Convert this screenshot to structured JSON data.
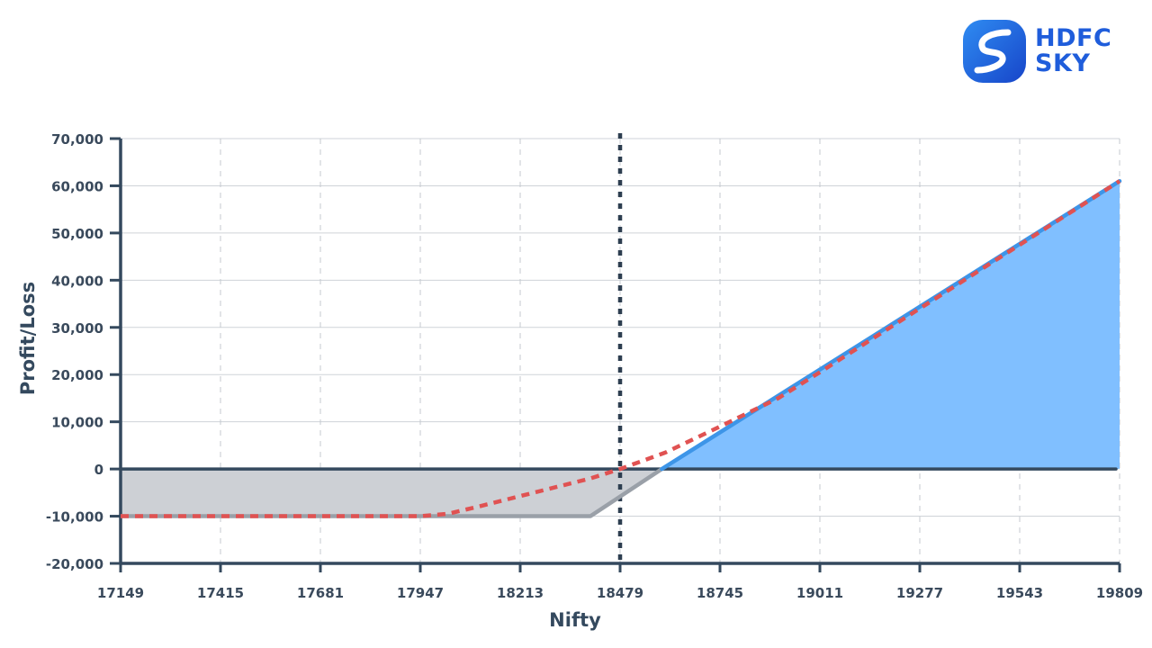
{
  "brand": {
    "line1": "HDFC",
    "line2": "SKY",
    "color": "#1f5ddb"
  },
  "chart_data": {
    "type": "area",
    "xlabel": "Nifty",
    "ylabel": "Profit/Loss",
    "x_ticks": [
      17149,
      17415,
      17681,
      17947,
      18213,
      18479,
      18745,
      19011,
      19277,
      19543,
      19809
    ],
    "y_ticks": [
      -20000,
      -10000,
      0,
      10000,
      20000,
      30000,
      40000,
      50000,
      60000,
      70000
    ],
    "y_tick_labels": [
      "-20,000",
      "-10,000",
      "0",
      "10,000",
      "20,000",
      "30,000",
      "40,000",
      "50,000",
      "60,000",
      "70,000"
    ],
    "xlim": [
      17149,
      19809
    ],
    "ylim": [
      -20000,
      70000
    ],
    "grid": true,
    "current_spot": 18479,
    "series": [
      {
        "style": "solid",
        "color": "#3d95e8",
        "loss_color": "#9aa0a8",
        "points": [
          [
            17149,
            -10000
          ],
          [
            18400,
            -10000
          ],
          [
            18590,
            0
          ],
          [
            19809,
            61000
          ]
        ]
      },
      {
        "style": "dashed",
        "color": "#e05252",
        "points": [
          [
            17149,
            -10000
          ],
          [
            17947,
            -10000
          ],
          [
            18020,
            -9500
          ],
          [
            18100,
            -8000
          ],
          [
            18200,
            -6000
          ],
          [
            18300,
            -4000
          ],
          [
            18400,
            -2000
          ],
          [
            18479,
            0
          ],
          [
            18600,
            3500
          ],
          [
            18745,
            9000
          ],
          [
            18900,
            15000
          ],
          [
            19011,
            20500
          ],
          [
            19277,
            34000
          ],
          [
            19543,
            47500
          ],
          [
            19809,
            61000
          ]
        ]
      }
    ],
    "fill_positive_color": "#80bfff",
    "fill_negative_color": "#cdd0d5"
  }
}
